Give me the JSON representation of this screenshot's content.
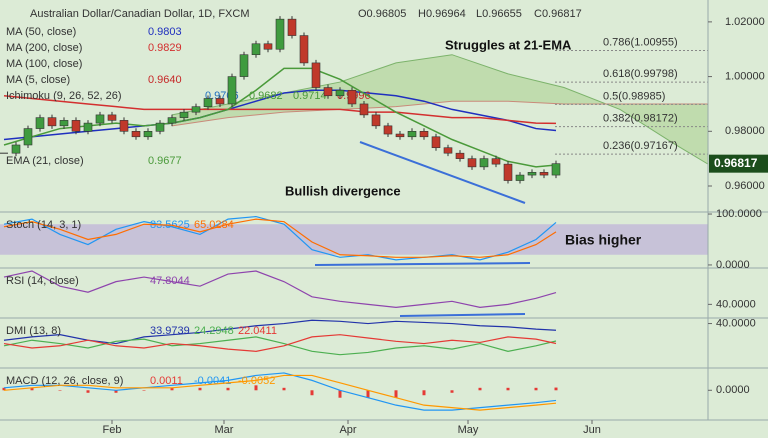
{
  "header": {
    "symbol": "Australian Dollar/Canadian Dollar, 1D, FXCM",
    "ohlc": [
      "O0.96805",
      "H0.96964",
      "L0.96655",
      "C0.96817"
    ]
  },
  "chart_data": {
    "type": "candlestick",
    "x": [
      4,
      7,
      10,
      13,
      16,
      19,
      22,
      25,
      28,
      31,
      34,
      37,
      40,
      43,
      46,
      49,
      52,
      55,
      58,
      61,
      64,
      67,
      70,
      73,
      76,
      79,
      82,
      85,
      88,
      91,
      94,
      97,
      100,
      103,
      106,
      109,
      112,
      115,
      118,
      121,
      124,
      127,
      130,
      133,
      136,
      139,
      142
    ],
    "close": [
      0.972,
      0.975,
      0.981,
      0.985,
      0.982,
      0.984,
      0.98,
      0.983,
      0.986,
      0.984,
      0.98,
      0.978,
      0.98,
      0.983,
      0.985,
      0.987,
      0.989,
      0.992,
      0.99,
      1.0,
      1.008,
      1.012,
      1.01,
      1.021,
      1.015,
      1.005,
      0.996,
      0.993,
      0.995,
      0.99,
      0.986,
      0.982,
      0.979,
      0.978,
      0.98,
      0.978,
      0.974,
      0.972,
      0.97,
      0.967,
      0.97,
      0.968,
      0.962,
      0.964,
      0.965,
      0.964,
      0.96817
    ],
    "up_color": "#3f9b3f",
    "down_color": "#c0392b",
    "xlim": [
      3,
      180
    ],
    "xticks": [
      {
        "value": 31,
        "label": "Feb"
      },
      {
        "value": 59,
        "label": "Mar"
      },
      {
        "value": 90,
        "label": "Apr"
      },
      {
        "value": 120,
        "label": "May"
      },
      {
        "value": 151,
        "label": "Jun"
      }
    ],
    "ylim": [
      0.9505,
      1.028
    ],
    "yticks": [
      {
        "value": 1.02,
        "label": "1.02000"
      },
      {
        "value": 1.0,
        "label": "1.00000"
      },
      {
        "value": 0.98,
        "label": "0.98000"
      },
      {
        "value": 0.96,
        "label": "0.96000"
      }
    ],
    "last_price": {
      "value": 0.96817,
      "label": "0.96817"
    },
    "indicator_x": [
      4,
      11,
      18,
      25,
      32,
      39,
      46,
      53,
      60,
      67,
      74,
      81,
      88,
      95,
      102,
      109,
      116,
      123,
      130,
      137,
      142
    ],
    "overlays": [
      {
        "name": "MA (50, close)",
        "color": "#1f2fbf",
        "readings": [
          {
            "text": "0.9803",
            "color": "#1f2fbf"
          }
        ],
        "values": [
          0.977,
          0.978,
          0.979,
          0.98,
          0.981,
          0.982,
          0.983,
          0.985,
          0.988,
          0.991,
          0.994,
          0.995,
          0.995,
          0.994,
          0.993,
          0.991,
          0.988,
          0.986,
          0.984,
          0.981,
          0.9803
        ]
      },
      {
        "name": "MA (200, close)",
        "color": "#d32f2f",
        "readings": [
          {
            "text": "0.9829",
            "color": "#d32f2f"
          }
        ],
        "values": [
          0.993,
          0.992,
          0.991,
          0.99,
          0.989,
          0.988,
          0.988,
          0.988,
          0.988,
          0.988,
          0.988,
          0.988,
          0.988,
          0.987,
          0.987,
          0.986,
          0.985,
          0.985,
          0.984,
          0.983,
          0.9829
        ]
      },
      {
        "name": "MA (100, close)",
        "color": "#888888",
        "readings": []
      },
      {
        "name": "MA (5, close)",
        "color": "#c62828",
        "readings": [
          {
            "text": "0.9640",
            "color": "#c62828"
          }
        ]
      },
      {
        "name": "Ichimoku (9, 26, 52, 26)",
        "color": "#7cb36b",
        "readings": [
          {
            "text": "0.9706",
            "color": "#1f6fbf"
          },
          {
            "text": "0.9682",
            "color": "#4a9a3a"
          },
          {
            "text": "0.9714",
            "color": "#4a9a3a"
          },
          {
            "text": "0.9996",
            "color": "#c62828"
          }
        ]
      },
      {
        "name": "EMA (21, close)",
        "color": "#4a9a3a",
        "readings": [
          {
            "text": "0.9677",
            "color": "#4a9a3a"
          }
        ],
        "values": [
          0.975,
          0.978,
          0.981,
          0.982,
          0.983,
          0.982,
          0.983,
          0.985,
          0.988,
          0.995,
          1.003,
          1.003,
          0.999,
          0.993,
          0.987,
          0.982,
          0.977,
          0.973,
          0.969,
          0.967,
          0.9677
        ]
      }
    ],
    "cloud": {
      "x": [
        46,
        60,
        74,
        88,
        102,
        116,
        130,
        144,
        158,
        172,
        180
      ],
      "top": [
        0.986,
        0.99,
        0.994,
        0.998,
        1.005,
        1.008,
        1.001,
        0.996,
        0.988,
        0.975,
        0.968
      ],
      "bottom": [
        0.982,
        0.985,
        0.987,
        0.988,
        0.989,
        0.991,
        0.991,
        0.99,
        0.99,
        0.99,
        0.99
      ],
      "color": "#b3d69c",
      "top_color": "#7cb36b",
      "bottom_color": "#c98a7a"
    },
    "fib_levels": [
      {
        "value": 1.00955,
        "label": "0.786(1.00955)"
      },
      {
        "value": 0.99798,
        "label": "0.618(0.99798)"
      },
      {
        "value": 0.98985,
        "label": "0.5(0.98985)"
      },
      {
        "value": 0.98172,
        "label": "0.382(0.98172)"
      },
      {
        "value": 0.97167,
        "label": "0.236(0.97167)"
      }
    ],
    "annotations": [
      "Struggles at 21-EMA",
      "Bullish divergence"
    ]
  },
  "indicators": [
    {
      "name": "Stoch (14, 3, 1)",
      "ylim": [
        -6,
        104
      ],
      "yticks": [
        {
          "value": 100,
          "label": "100.0000"
        },
        {
          "value": 0,
          "label": "0.0000"
        }
      ],
      "band": [
        20,
        80
      ],
      "band_color": "#b9a6d9",
      "annotation": "Bias higher",
      "series": [
        {
          "reading": "83.5625",
          "color": "#2196f3",
          "values": [
            80,
            90,
            60,
            40,
            70,
            85,
            75,
            60,
            90,
            95,
            80,
            30,
            15,
            20,
            10,
            15,
            20,
            10,
            25,
            50,
            83.5625
          ]
        },
        {
          "reading": "65.0284",
          "color": "#ff6d00",
          "values": [
            75,
            85,
            70,
            50,
            60,
            80,
            78,
            65,
            80,
            90,
            85,
            45,
            20,
            18,
            15,
            15,
            18,
            15,
            20,
            40,
            65.0284
          ]
        }
      ]
    },
    {
      "name": "RSI (14, close)",
      "ylim": [
        31,
        64
      ],
      "yticks": [
        {
          "value": 40,
          "label": "40.0000"
        }
      ],
      "series": [
        {
          "reading": "47.8044",
          "color": "#8e44ad",
          "values": [
            58,
            62,
            52,
            48,
            55,
            58,
            55,
            52,
            60,
            62,
            55,
            45,
            42,
            40,
            38,
            40,
            42,
            38,
            40,
            44,
            47.8044
          ]
        }
      ]
    },
    {
      "name": "DMI (13, 8)",
      "ylim": [
        0,
        45
      ],
      "yticks": [
        {
          "value": 40,
          "label": "40.0000"
        }
      ],
      "series": [
        {
          "reading": "33.9739",
          "color": "#2233aa",
          "values": [
            25,
            28,
            30,
            25,
            22,
            28,
            30,
            32,
            35,
            38,
            40,
            43,
            42,
            40,
            42,
            41,
            40,
            38,
            37,
            35,
            33.9739
          ]
        },
        {
          "reading": "24.2948",
          "color": "#4caf50",
          "values": [
            20,
            25,
            22,
            18,
            24,
            26,
            20,
            22,
            25,
            28,
            22,
            15,
            12,
            14,
            18,
            20,
            17,
            22,
            15,
            20,
            24.2948
          ]
        },
        {
          "reading": "22.0411",
          "color": "#e53935",
          "values": [
            22,
            18,
            20,
            25,
            20,
            18,
            22,
            20,
            17,
            15,
            20,
            28,
            30,
            27,
            24,
            22,
            25,
            23,
            28,
            26,
            22.0411
          ]
        }
      ]
    },
    {
      "name": "MACD (12, 26, close, 9)",
      "ylim": [
        -0.012,
        0.009
      ],
      "yticks": [
        {
          "value": 0,
          "label": "0.0000"
        }
      ],
      "series": [
        {
          "reading": "0.0011",
          "color": "#e53935",
          "style": "histogram",
          "values": [
            0.001,
            0.001,
            0.0,
            -0.001,
            -0.001,
            0.0,
            0.001,
            0.001,
            0.001,
            0.002,
            0.001,
            -0.002,
            -0.003,
            -0.003,
            -0.003,
            -0.002,
            -0.001,
            0.001,
            0.001,
            0.001,
            0.0011
          ]
        },
        {
          "reading": "-0.0041",
          "color": "#2196f3",
          "values": [
            0.001,
            0.002,
            0.002,
            0.001,
            0.0,
            0.001,
            0.002,
            0.003,
            0.004,
            0.006,
            0.007,
            0.004,
            0.0,
            -0.003,
            -0.006,
            -0.008,
            -0.008,
            -0.007,
            -0.006,
            -0.005,
            -0.0041
          ]
        },
        {
          "reading": "-0.0052",
          "color": "#ff9800",
          "values": [
            0.0,
            0.001,
            0.002,
            0.002,
            0.001,
            0.001,
            0.001,
            0.002,
            0.003,
            0.004,
            0.006,
            0.006,
            0.003,
            0.0,
            -0.003,
            -0.006,
            -0.007,
            -0.008,
            -0.007,
            -0.006,
            -0.0052
          ]
        }
      ]
    }
  ]
}
